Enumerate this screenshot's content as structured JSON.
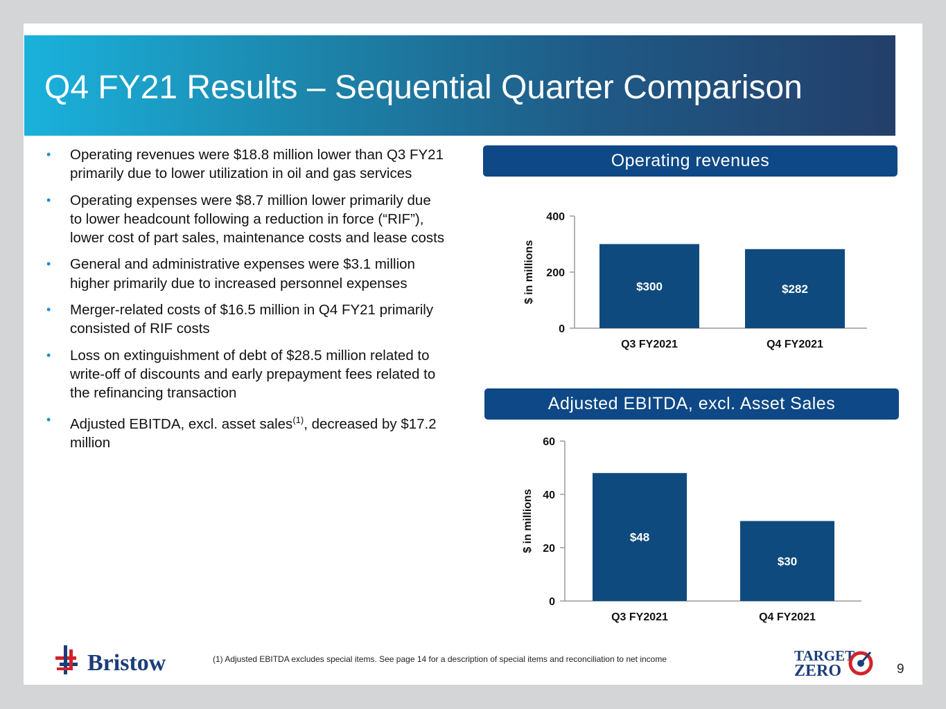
{
  "title": "Q4 FY21 Results – Sequential Quarter Comparison",
  "bullets": [
    {
      "text": "Operating revenues were $18.8 million lower than Q3 FY21 primarily due to lower utilization in oil and gas services"
    },
    {
      "text": "Operating expenses were $8.7 million lower primarily due to lower headcount following a reduction in force (“RIF”), lower cost of part sales, maintenance costs and lease costs"
    },
    {
      "text": "General and administrative expenses were $3.1 million higher primarily due to increased personnel expenses"
    },
    {
      "text": "Merger-related costs of $16.5 million in Q4 FY21 primarily consisted of RIF costs"
    },
    {
      "text": "Loss on extinguishment of debt of $28.5 million related to write-off of discounts and early prepayment fees related to the refinancing transaction"
    },
    {
      "text_before": "Adjusted EBITDA, excl. asset sales",
      "sup": "(1)",
      "text_after": ", decreased by $17.2 million"
    }
  ],
  "bullet_glyph": "•",
  "chart_data": [
    {
      "type": "bar",
      "title": "Operating revenues",
      "categories": [
        "Q3 FY2021",
        "Q4 FY2021"
      ],
      "values": [
        300,
        282
      ],
      "data_labels": [
        "$300",
        "$282"
      ],
      "ylabel": "$ in millions",
      "xlabel": "",
      "ylim": [
        0,
        400
      ],
      "yticks": [
        0,
        200,
        400
      ],
      "color": "#0e4a7e"
    },
    {
      "type": "bar",
      "title": "Adjusted EBITDA, excl. Asset Sales",
      "categories": [
        "Q3 FY2021",
        "Q4 FY2021"
      ],
      "values": [
        48,
        30
      ],
      "data_labels": [
        "$48",
        "$30"
      ],
      "ylabel": "$ in millions",
      "xlabel": "",
      "ylim": [
        0,
        60
      ],
      "yticks": [
        0,
        20,
        40,
        60
      ],
      "color": "#0e4a7e"
    }
  ],
  "footer": {
    "logo_text": "Bristow",
    "footnote": "(1)  Adjusted EBITDA excludes special items. See page 14 for a description of special items and reconciliation to net income",
    "target_zero_line1": "TARGET",
    "target_zero_line2": "ZERO",
    "page_number": "9"
  },
  "colors": {
    "panel_header": "#0e4886",
    "bar": "#0e4a7e",
    "bullet": "#1a8fd0",
    "logo_red": "#d2232a",
    "logo_blue": "#1b3d7a"
  }
}
